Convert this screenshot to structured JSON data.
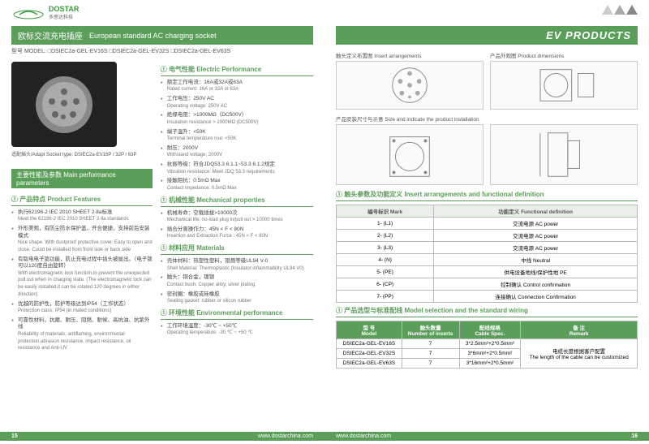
{
  "brand": {
    "name": "DOSTAR",
    "sub": "多思达科技"
  },
  "titlebar": {
    "cn": "欧标交流充电插座",
    "en": "European standard AC charging socket",
    "right": "EV PRODUCTS"
  },
  "model_line": "型号 MODEL:  □DSIEC2a-GEL-EV16S  □DSIEC2a-GEL-EV32S  □DSIEC2a-GEL-EV63S",
  "caption": "适配插头/Adapt Socket type: DSIEC2a-EV16P / 32P / 63P",
  "section_main": "主要性能及参数   Main performance parameters",
  "sub_features": "① 产品特点   Product Features",
  "features": [
    {
      "cn": "执行62196-2  IEC  2010  SHEET 2-Ⅱa标准",
      "en": "Meet the 62196-2  IEC 2010  SHEET 2-Ⅱa standards"
    },
    {
      "cn": "外形美观，有防尘防水保护盖，开合便捷，支持前后安装模式",
      "en": "Nice shape. With dustproof protective cover. Easy to open and close. Could be installed from front side or back side"
    },
    {
      "cn": "有取电电子锁功能，防止充电过程中插头被拔出。（电子锁可以120度自由旋转）",
      "en": "With electromagnetic lock function,to prevent the unexpected pull out when in charging state. (The electromagnetic lock can be easily installed,it can be rotated 120 degrees in either direction)"
    },
    {
      "cn": "优越的防护性，防护等级达到IP54（工作状态）",
      "en": "Protection class: IP54 (in mated conditions)"
    },
    {
      "cn": "可靠性材料，抗磨、耐压、阻燃、耐候、高抗油、抗紫外线",
      "en": "Reliability of materials, antiflaming, environmental protection,abrasion resistance, impact resistance, oil resistance and Anti-UV"
    }
  ],
  "sub_elec": "① 电气性能   Electric Performance",
  "elec": [
    {
      "cn": "额定工作电流：16A或32A或63A",
      "en": "Rated current: 16A or 32A or 63A"
    },
    {
      "cn": "工作电压：250V AC",
      "en": "Operating voltage: 250V AC"
    },
    {
      "cn": "绝缘电阻：>1000MΩ（DC500V）",
      "en": "Insulation resistance > 1000MΩ (DC500V)"
    },
    {
      "cn": "端子温升：<50K",
      "en": "Terminal temperature rise: <50K"
    },
    {
      "cn": "耐压：2000V",
      "en": "Withstand voltage: 2000V"
    },
    {
      "cn": "抗振等级：符合JDQ53.3 6.1.1~53.3 6.1.2规定",
      "en": "Vibration resistance: Meet JDQ 53.3 requirements"
    },
    {
      "cn": "接触阻抗：0.5mΩ Max",
      "en": "Contact impedance: 0.5mΩ Max"
    }
  ],
  "sub_mech": "① 机械性能   Mechanical properties",
  "mech": [
    {
      "cn": "机械寿命：空载插拔>10000次",
      "en": "Mechanical life: no-load plug in/pull out > 10000 times"
    },
    {
      "cn": "插合分离操作力：45N < F < 80N",
      "en": "Insertion and Extraction Force : 45N < F < 80N"
    }
  ],
  "sub_mat": "① 材料应用   Materials",
  "mat": [
    {
      "cn": "壳体材料：热塑性塑料，阻燃等级UL94 V-0",
      "en": "Shell Material: Thermoplastic (Insulator inflammability UL94 V0)"
    },
    {
      "cn": "触头：铜合金，镀银",
      "en": "Contact bush: Copper alloy, silver plating"
    },
    {
      "cn": "密封圈：橡胶或硅橡胶",
      "en": "Sealing gasket: rubber or silicon rubber"
    }
  ],
  "sub_env": "① 环境性能   Environmental performance",
  "env": [
    {
      "cn": "工作环境温度：-30℃ ~ +50℃",
      "en": "Operating temperature: -30 ℃ ~ +50 ℃"
    }
  ],
  "diagram_labels": {
    "insert": "触头定义布置图   Insert arrangements",
    "dims": "产品外观图   Product dimensions",
    "install": "产品安装尺寸与示意   Size and indicate the product installation"
  },
  "sub_insert": "① 触头参数及功能定义   Insert arrangements and functional definition",
  "insert_table": {
    "headers": [
      "编号标识   Mark",
      "功能定义   Functional definition"
    ],
    "rows": [
      [
        "1- (L1)",
        "交流电源   AC power"
      ],
      [
        "2- (L2)",
        "交流电源   AC power"
      ],
      [
        "3- (L3)",
        "交流电源   AC power"
      ],
      [
        "4- (N)",
        "中线   Neutral"
      ],
      [
        "5- (PE)",
        "供电设备地线/保护性地   PE"
      ],
      [
        "6- (CP)",
        "控制确认   Control confirmation"
      ],
      [
        "7- (PP)",
        "连接确认   Connection Confirmation"
      ]
    ]
  },
  "sub_wiring": "① 产品选型与标准配线   Model selection and the standard wiring",
  "wiring_table": {
    "headers": [
      "型 号\nModel",
      "触头数量\nNumber of inserts",
      "配线规格\nCable Spec.",
      "备 注\nRemark"
    ],
    "rows": [
      [
        "DSIEC2a-GEL-EV16S",
        "7",
        "3*2.5mm²+2*0.5mm²"
      ],
      [
        "DSIEC2a-GEL-EV32S",
        "7",
        "3*6mm²+2*0.5mm²"
      ],
      [
        "DSIEC2a-GEL-EV63S",
        "7",
        "3*16mm²+2*0.5mm²"
      ]
    ],
    "remark": "电缆长度根据客户配置\nThe length of the cable can be customized"
  },
  "footer": {
    "url": "www.dostarchina.com",
    "left_page": "15",
    "right_page": "16"
  }
}
